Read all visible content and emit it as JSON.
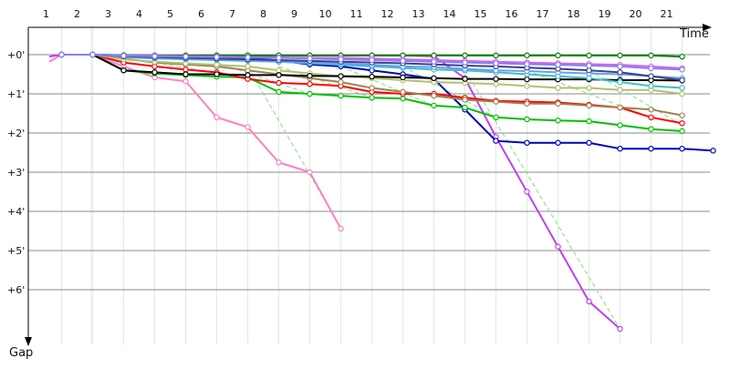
{
  "chart_data": {
    "type": "line",
    "xlabel": "Time",
    "ylabel": "Gap",
    "x_ticks": [
      "1",
      "2",
      "3",
      "4",
      "5",
      "6",
      "7",
      "8",
      "9",
      "10",
      "11",
      "12",
      "13",
      "14",
      "15",
      "16",
      "17",
      "18",
      "19",
      "20",
      "21"
    ],
    "y_ticks": [
      "+0'",
      "+1'",
      "+2'",
      "+3'",
      "+4'",
      "+5'",
      "+6'"
    ],
    "xlim": [
      0.6,
      22.2
    ],
    "ylim": [
      0,
      7.6
    ],
    "grid": true,
    "colors": {
      "vertical_grid": "#d8f0d8",
      "horizontal_grid": "#8a8a8a",
      "axis": "#000000"
    },
    "series": [
      {
        "color": "#ff80c0",
        "points": [
          [
            0.6,
            0.18
          ],
          [
            1,
            0
          ],
          [
            2,
            0
          ],
          [
            3,
            0.3
          ],
          [
            4,
            0.58
          ],
          [
            5,
            0.68
          ],
          [
            6,
            1.6
          ],
          [
            7,
            1.85
          ],
          [
            8,
            2.75
          ],
          [
            9,
            3.0
          ],
          [
            10,
            4.44
          ]
        ]
      },
      {
        "color": "#c040f0",
        "points": [
          [
            0.6,
            0.05
          ],
          [
            1,
            0
          ],
          [
            2,
            0
          ],
          [
            3,
            0.02
          ],
          [
            4,
            0.02
          ],
          [
            5,
            0.02
          ],
          [
            6,
            0.02
          ],
          [
            7,
            0.02
          ],
          [
            8,
            0.02
          ],
          [
            9,
            0.02
          ],
          [
            10,
            0.02
          ],
          [
            11,
            0.02
          ],
          [
            12,
            0.02
          ],
          [
            13,
            0.04
          ],
          [
            14,
            0.6
          ],
          [
            15,
            2.1
          ],
          [
            16,
            3.5
          ],
          [
            17,
            4.9
          ],
          [
            18,
            6.3
          ],
          [
            19,
            7.0
          ]
        ]
      },
      {
        "color": "#0000c0",
        "points": [
          [
            1,
            0
          ],
          [
            2,
            0
          ],
          [
            3,
            0.02
          ],
          [
            4,
            0.05
          ],
          [
            5,
            0.08
          ],
          [
            6,
            0.08
          ],
          [
            7,
            0.08
          ],
          [
            8,
            0.15
          ],
          [
            9,
            0.25
          ],
          [
            10,
            0.3
          ],
          [
            11,
            0.4
          ],
          [
            12,
            0.5
          ],
          [
            13,
            0.62
          ],
          [
            14,
            1.4
          ],
          [
            15,
            2.2
          ],
          [
            16,
            2.25
          ],
          [
            17,
            2.25
          ],
          [
            18,
            2.25
          ],
          [
            19,
            2.4
          ],
          [
            20,
            2.4
          ],
          [
            21,
            2.4
          ],
          [
            22,
            2.45
          ]
        ]
      },
      {
        "color": "#00c000",
        "points": [
          [
            1,
            0
          ],
          [
            2,
            0
          ],
          [
            3,
            0.4
          ],
          [
            4,
            0.48
          ],
          [
            5,
            0.52
          ],
          [
            6,
            0.56
          ],
          [
            7,
            0.58
          ],
          [
            8,
            0.95
          ],
          [
            9,
            1.0
          ],
          [
            10,
            1.05
          ],
          [
            11,
            1.1
          ],
          [
            12,
            1.12
          ],
          [
            13,
            1.3
          ],
          [
            14,
            1.35
          ],
          [
            15,
            1.6
          ],
          [
            16,
            1.65
          ],
          [
            17,
            1.68
          ],
          [
            18,
            1.7
          ],
          [
            19,
            1.8
          ],
          [
            20,
            1.9
          ],
          [
            21,
            1.95
          ]
        ]
      },
      {
        "color": "#ff0000",
        "points": [
          [
            1,
            0
          ],
          [
            2,
            0
          ],
          [
            3,
            0.2
          ],
          [
            4,
            0.3
          ],
          [
            5,
            0.38
          ],
          [
            6,
            0.45
          ],
          [
            7,
            0.62
          ],
          [
            8,
            0.72
          ],
          [
            9,
            0.75
          ],
          [
            10,
            0.8
          ],
          [
            11,
            0.95
          ],
          [
            12,
            1.0
          ],
          [
            13,
            1.0
          ],
          [
            14,
            1.1
          ],
          [
            15,
            1.18
          ],
          [
            16,
            1.2
          ],
          [
            17,
            1.22
          ],
          [
            18,
            1.28
          ],
          [
            19,
            1.35
          ],
          [
            20,
            1.6
          ],
          [
            21,
            1.75
          ]
        ]
      },
      {
        "color": "#a08050",
        "points": [
          [
            1,
            0
          ],
          [
            2,
            0
          ],
          [
            3,
            0.1
          ],
          [
            4,
            0.2
          ],
          [
            5,
            0.25
          ],
          [
            6,
            0.3
          ],
          [
            7,
            0.4
          ],
          [
            8,
            0.5
          ],
          [
            9,
            0.6
          ],
          [
            10,
            0.7
          ],
          [
            11,
            0.85
          ],
          [
            12,
            0.95
          ],
          [
            13,
            1.05
          ],
          [
            14,
            1.15
          ],
          [
            15,
            1.2
          ],
          [
            16,
            1.25
          ],
          [
            17,
            1.25
          ],
          [
            18,
            1.3
          ],
          [
            19,
            1.35
          ],
          [
            20,
            1.4
          ],
          [
            21,
            1.55
          ]
        ]
      },
      {
        "color": "#b0c070",
        "points": [
          [
            1,
            0
          ],
          [
            2,
            0
          ],
          [
            3,
            0.12
          ],
          [
            4,
            0.18
          ],
          [
            5,
            0.22
          ],
          [
            6,
            0.26
          ],
          [
            7,
            0.3
          ],
          [
            8,
            0.4
          ],
          [
            9,
            0.48
          ],
          [
            10,
            0.55
          ],
          [
            11,
            0.6
          ],
          [
            12,
            0.65
          ],
          [
            13,
            0.7
          ],
          [
            14,
            0.72
          ],
          [
            15,
            0.75
          ],
          [
            16,
            0.8
          ],
          [
            17,
            0.85
          ],
          [
            18,
            0.85
          ],
          [
            19,
            0.9
          ],
          [
            20,
            0.9
          ],
          [
            21,
            1.0
          ]
        ]
      },
      {
        "color": "#000000",
        "points": [
          [
            1,
            0
          ],
          [
            2,
            0
          ],
          [
            3,
            0.4
          ],
          [
            4,
            0.45
          ],
          [
            5,
            0.5
          ],
          [
            6,
            0.5
          ],
          [
            7,
            0.52
          ],
          [
            8,
            0.52
          ],
          [
            9,
            0.54
          ],
          [
            10,
            0.55
          ],
          [
            11,
            0.56
          ],
          [
            12,
            0.58
          ],
          [
            13,
            0.6
          ],
          [
            14,
            0.62
          ],
          [
            15,
            0.62
          ],
          [
            16,
            0.63
          ],
          [
            17,
            0.63
          ],
          [
            18,
            0.63
          ],
          [
            19,
            0.65
          ],
          [
            20,
            0.65
          ],
          [
            21,
            0.66
          ]
        ]
      },
      {
        "color": "#40c0c0",
        "points": [
          [
            1,
            0
          ],
          [
            2,
            0
          ],
          [
            3,
            0.06
          ],
          [
            4,
            0.1
          ],
          [
            5,
            0.12
          ],
          [
            6,
            0.14
          ],
          [
            7,
            0.16
          ],
          [
            8,
            0.18
          ],
          [
            9,
            0.22
          ],
          [
            10,
            0.26
          ],
          [
            11,
            0.3
          ],
          [
            12,
            0.34
          ],
          [
            13,
            0.38
          ],
          [
            14,
            0.4
          ],
          [
            15,
            0.45
          ],
          [
            16,
            0.5
          ],
          [
            17,
            0.55
          ],
          [
            18,
            0.6
          ],
          [
            19,
            0.7
          ],
          [
            20,
            0.8
          ],
          [
            21,
            0.85
          ]
        ]
      },
      {
        "color": "#60a0ff",
        "points": [
          [
            1,
            0
          ],
          [
            2,
            0
          ],
          [
            3,
            0.05
          ],
          [
            4,
            0.08
          ],
          [
            5,
            0.1
          ],
          [
            6,
            0.12
          ],
          [
            7,
            0.14
          ],
          [
            8,
            0.18
          ],
          [
            9,
            0.2
          ],
          [
            10,
            0.22
          ],
          [
            11,
            0.26
          ],
          [
            12,
            0.3
          ],
          [
            13,
            0.32
          ],
          [
            14,
            0.36
          ],
          [
            15,
            0.4
          ],
          [
            16,
            0.42
          ],
          [
            17,
            0.45
          ],
          [
            18,
            0.48
          ],
          [
            19,
            0.5
          ],
          [
            20,
            0.55
          ],
          [
            21,
            0.6
          ]
        ]
      },
      {
        "color": "#404080",
        "points": [
          [
            1,
            0
          ],
          [
            2,
            0
          ],
          [
            3,
            0.04
          ],
          [
            4,
            0.06
          ],
          [
            5,
            0.08
          ],
          [
            6,
            0.1
          ],
          [
            7,
            0.12
          ],
          [
            8,
            0.14
          ],
          [
            9,
            0.16
          ],
          [
            10,
            0.18
          ],
          [
            11,
            0.2
          ],
          [
            12,
            0.22
          ],
          [
            13,
            0.25
          ],
          [
            14,
            0.28
          ],
          [
            15,
            0.3
          ],
          [
            16,
            0.33
          ],
          [
            17,
            0.36
          ],
          [
            18,
            0.4
          ],
          [
            19,
            0.45
          ],
          [
            20,
            0.55
          ],
          [
            21,
            0.65
          ]
        ]
      },
      {
        "color": "#008000",
        "points": [
          [
            1,
            0
          ],
          [
            2,
            0
          ],
          [
            3,
            0.01
          ],
          [
            4,
            0.02
          ],
          [
            5,
            0.02
          ],
          [
            6,
            0.02
          ],
          [
            7,
            0.02
          ],
          [
            8,
            0.02
          ],
          [
            9,
            0.02
          ],
          [
            10,
            0.02
          ],
          [
            11,
            0.02
          ],
          [
            12,
            0.02
          ],
          [
            13,
            0.02
          ],
          [
            14,
            0.02
          ],
          [
            15,
            0.02
          ],
          [
            16,
            0.02
          ],
          [
            17,
            0.02
          ],
          [
            18,
            0.02
          ],
          [
            19,
            0.02
          ],
          [
            20,
            0.02
          ],
          [
            21,
            0.05
          ]
        ]
      },
      {
        "color": "#e060e0",
        "points": [
          [
            1,
            0
          ],
          [
            2,
            0
          ],
          [
            3,
            0.02
          ],
          [
            4,
            0.03
          ],
          [
            5,
            0.04
          ],
          [
            6,
            0.05
          ],
          [
            7,
            0.06
          ],
          [
            8,
            0.07
          ],
          [
            9,
            0.08
          ],
          [
            10,
            0.08
          ],
          [
            11,
            0.1
          ],
          [
            12,
            0.12
          ],
          [
            13,
            0.14
          ],
          [
            14,
            0.16
          ],
          [
            15,
            0.18
          ],
          [
            16,
            0.2
          ],
          [
            17,
            0.22
          ],
          [
            18,
            0.24
          ],
          [
            19,
            0.26
          ],
          [
            20,
            0.3
          ],
          [
            21,
            0.35
          ]
        ]
      },
      {
        "color": "#8080ff",
        "points": [
          [
            1,
            0
          ],
          [
            2,
            0
          ],
          [
            3,
            0.03
          ],
          [
            4,
            0.04
          ],
          [
            5,
            0.05
          ],
          [
            6,
            0.06
          ],
          [
            7,
            0.07
          ],
          [
            8,
            0.08
          ],
          [
            9,
            0.1
          ],
          [
            10,
            0.12
          ],
          [
            11,
            0.14
          ],
          [
            12,
            0.16
          ],
          [
            13,
            0.18
          ],
          [
            14,
            0.2
          ],
          [
            15,
            0.22
          ],
          [
            16,
            0.24
          ],
          [
            17,
            0.26
          ],
          [
            18,
            0.28
          ],
          [
            19,
            0.3
          ],
          [
            20,
            0.35
          ],
          [
            21,
            0.38
          ]
        ]
      }
    ],
    "dashed_connectors": [
      {
        "color": "#88dd88",
        "from": [
          4,
          0.2
        ],
        "to": [
          7,
          0.6
        ]
      },
      {
        "color": "#88dd88",
        "from": [
          6,
          0.2
        ],
        "to": [
          9,
          1.0
        ]
      },
      {
        "color": "#88dd88",
        "from": [
          7,
          0.3
        ],
        "to": [
          10,
          4.44
        ]
      },
      {
        "color": "#88dd88",
        "from": [
          8,
          0.3
        ],
        "to": [
          11,
          1.1
        ]
      },
      {
        "color": "#88dd88",
        "from": [
          10,
          0.3
        ],
        "to": [
          13,
          1.3
        ]
      },
      {
        "color": "#88dd88",
        "from": [
          12,
          0.3
        ],
        "to": [
          15,
          1.6
        ]
      },
      {
        "color": "#88dd88",
        "from": [
          14,
          0.4
        ],
        "to": [
          19,
          7.0
        ]
      },
      {
        "color": "#88dd88",
        "from": [
          16,
          0.4
        ],
        "to": [
          20,
          1.6
        ]
      },
      {
        "color": "#88dd88",
        "from": [
          18,
          0.4
        ],
        "to": [
          21,
          1.8
        ]
      }
    ]
  }
}
